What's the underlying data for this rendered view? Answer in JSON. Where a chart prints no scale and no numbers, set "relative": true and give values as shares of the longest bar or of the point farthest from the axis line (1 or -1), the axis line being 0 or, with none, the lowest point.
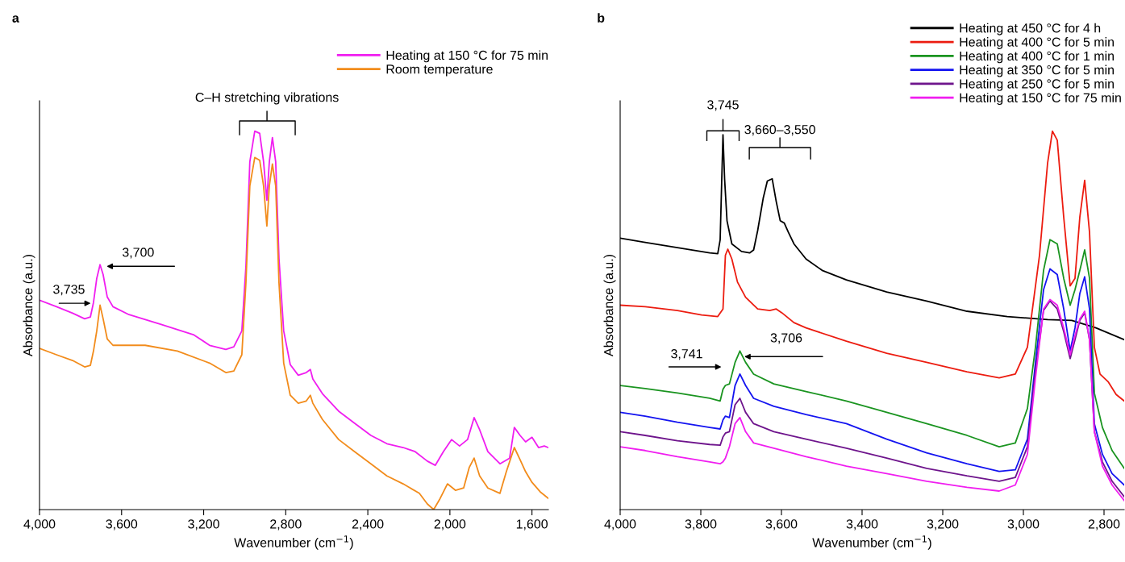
{
  "chart_data": [
    {
      "type": "line",
      "title": "a",
      "relative": true,
      "xlabel": "Wavenumber (cm$^{−1}$)",
      "ylabel": "Absorbance (a.u.)",
      "xlim": [
        4000,
        1520
      ],
      "xticks": [
        {
          "value": 4000,
          "label": "4,000"
        },
        {
          "value": 3600,
          "label": "3,600"
        },
        {
          "value": 3200,
          "label": "3,200"
        },
        {
          "value": 2800,
          "label": "2,800"
        },
        {
          "value": 2400,
          "label": "2,400"
        },
        {
          "value": 2000,
          "label": "2,000"
        },
        {
          "value": 1600,
          "label": "1,600"
        }
      ],
      "tick_labels": "x",
      "grid": false,
      "legend": "top right",
      "marker": "none",
      "line_style": "solid",
      "annotations": [
        "C–H stretching vibrations",
        {
          "text": "3,735",
          "x": 3735,
          "y": 0.545
        },
        {
          "text": "3,700",
          "x": 3700,
          "y": 0.647
        }
      ],
      "series": [
        {
          "name": "Heating at 150 °C for 75 min",
          "color": "#f01ef0",
          "x": [
            4000,
            3917,
            3839,
            3780,
            3752,
            3737,
            3721,
            3705,
            3690,
            3670,
            3642,
            3564,
            3407,
            3250,
            3171,
            3092,
            3053,
            3014,
            2994,
            2975,
            2951,
            2927,
            2908,
            2892,
            2880,
            2865,
            2849,
            2833,
            2810,
            2778,
            2739,
            2700,
            2680,
            2668,
            2621,
            2542,
            2464,
            2385,
            2307,
            2228,
            2169,
            2110,
            2071,
            2032,
            1992,
            1953,
            1914,
            1882,
            1855,
            1815,
            1756,
            1709,
            1686,
            1658,
            1631,
            1600,
            1568,
            1540,
            1521
          ],
          "values": [
            0.553,
            0.536,
            0.519,
            0.504,
            0.509,
            0.547,
            0.611,
            0.647,
            0.621,
            0.562,
            0.536,
            0.515,
            0.489,
            0.462,
            0.434,
            0.423,
            0.43,
            0.472,
            0.643,
            0.919,
            1,
            0.994,
            0.919,
            0.817,
            0.919,
            0.983,
            0.919,
            0.664,
            0.472,
            0.383,
            0.355,
            0.362,
            0.37,
            0.345,
            0.306,
            0.26,
            0.228,
            0.196,
            0.174,
            0.164,
            0.153,
            0.128,
            0.117,
            0.153,
            0.185,
            0.168,
            0.185,
            0.243,
            0.211,
            0.153,
            0.121,
            0.136,
            0.217,
            0.196,
            0.179,
            0.191,
            0.164,
            0.168,
            0.164
          ]
        },
        {
          "name": "Room temperature",
          "color": "#f28c1c",
          "x": [
            4000,
            3917,
            3839,
            3780,
            3752,
            3737,
            3721,
            3705,
            3690,
            3670,
            3642,
            3564,
            3485,
            3328,
            3171,
            3092,
            3053,
            3014,
            2994,
            2975,
            2951,
            2927,
            2908,
            2892,
            2880,
            2865,
            2849,
            2833,
            2810,
            2778,
            2739,
            2700,
            2680,
            2668,
            2621,
            2542,
            2464,
            2385,
            2307,
            2228,
            2149,
            2110,
            2079,
            2051,
            2012,
            1973,
            1933,
            1906,
            1882,
            1855,
            1815,
            1756,
            1725,
            1686,
            1658,
            1631,
            1600,
            1560,
            1521
          ],
          "values": [
            0.426,
            0.409,
            0.394,
            0.377,
            0.381,
            0.419,
            0.472,
            0.54,
            0.504,
            0.451,
            0.434,
            0.434,
            0.434,
            0.419,
            0.387,
            0.362,
            0.366,
            0.409,
            0.6,
            0.855,
            0.93,
            0.923,
            0.855,
            0.749,
            0.855,
            0.913,
            0.855,
            0.6,
            0.387,
            0.302,
            0.281,
            0.287,
            0.302,
            0.281,
            0.238,
            0.185,
            0.153,
            0.121,
            0.089,
            0.068,
            0.043,
            0.015,
            0,
            0.026,
            0.068,
            0.051,
            0.057,
            0.111,
            0.136,
            0.089,
            0.057,
            0.043,
            0.1,
            0.164,
            0.132,
            0.1,
            0.072,
            0.047,
            0.03
          ]
        }
      ]
    },
    {
      "type": "line",
      "title": "b",
      "relative": true,
      "xlabel": "Wavenumber (cm$^{−1}$)",
      "ylabel": "Absorbance (a.u.)",
      "xlim": [
        4000,
        2750
      ],
      "xticks": [
        {
          "value": 4000,
          "label": "4,000"
        },
        {
          "value": 3800,
          "label": "3,800"
        },
        {
          "value": 3600,
          "label": "3,600"
        },
        {
          "value": 3400,
          "label": "3,400"
        },
        {
          "value": 3200,
          "label": "3,200"
        },
        {
          "value": 3000,
          "label": "3,000"
        },
        {
          "value": 2800,
          "label": "2,800"
        }
      ],
      "tick_labels": "x",
      "grid": false,
      "legend": "top right",
      "marker": "none",
      "line_style": "solid",
      "annotations": [
        {
          "text": "3,745",
          "x": 3745,
          "y": 0.99
        },
        "3,660–3,550",
        {
          "text": "3,741",
          "x": 3741,
          "y": 0.328
        },
        {
          "text": "3,706",
          "x": 3706,
          "y": 0.419
        }
      ],
      "series": [
        {
          "name": "Heating at 450 °C for 4 h",
          "color": "#000000",
          "x": [
            4000,
            3938,
            3858,
            3778,
            3758,
            3752,
            3748,
            3745,
            3741,
            3735,
            3723,
            3699,
            3679,
            3669,
            3659,
            3645,
            3635,
            3623,
            3613,
            3603,
            3593,
            3583,
            3569,
            3539,
            3499,
            3439,
            3339,
            3240,
            3140,
            3040,
            2940,
            2880,
            2820,
            2750
          ],
          "values": [
            0.717,
            0.706,
            0.692,
            0.678,
            0.676,
            0.713,
            0.874,
            0.99,
            0.874,
            0.763,
            0.702,
            0.682,
            0.678,
            0.686,
            0.737,
            0.824,
            0.868,
            0.874,
            0.814,
            0.763,
            0.757,
            0.733,
            0.702,
            0.662,
            0.632,
            0.607,
            0.575,
            0.551,
            0.524,
            0.51,
            0.502,
            0.5,
            0.48,
            0.449
          ]
        },
        {
          "name": "Heating at 400 °C for 5 min",
          "color": "#ec1c10",
          "x": [
            4000,
            3938,
            3858,
            3798,
            3758,
            3745,
            3739,
            3733,
            3723,
            3709,
            3689,
            3659,
            3629,
            3613,
            3599,
            3569,
            3539,
            3439,
            3339,
            3240,
            3140,
            3060,
            3020,
            2990,
            2960,
            2940,
            2928,
            2916,
            2900,
            2884,
            2872,
            2860,
            2848,
            2836,
            2824,
            2810,
            2790,
            2770,
            2750
          ],
          "values": [
            0.54,
            0.536,
            0.526,
            0.514,
            0.51,
            0.53,
            0.672,
            0.688,
            0.662,
            0.601,
            0.561,
            0.53,
            0.526,
            0.53,
            0.52,
            0.494,
            0.48,
            0.445,
            0.413,
            0.389,
            0.364,
            0.348,
            0.358,
            0.429,
            0.672,
            0.915,
            1,
            0.976,
            0.773,
            0.591,
            0.611,
            0.773,
            0.87,
            0.733,
            0.429,
            0.358,
            0.338,
            0.304,
            0.287
          ]
        },
        {
          "name": "Heating at 400 °C for 1 min",
          "color": "#1a9420",
          "x": [
            4000,
            3938,
            3858,
            3778,
            3752,
            3745,
            3739,
            3729,
            3715,
            3703,
            3689,
            3669,
            3619,
            3539,
            3439,
            3339,
            3240,
            3140,
            3060,
            3020,
            2990,
            2970,
            2950,
            2934,
            2916,
            2900,
            2884,
            2872,
            2860,
            2848,
            2836,
            2824,
            2804,
            2780,
            2750
          ],
          "values": [
            0.328,
            0.32,
            0.308,
            0.294,
            0.287,
            0.318,
            0.328,
            0.332,
            0.389,
            0.419,
            0.389,
            0.358,
            0.332,
            0.312,
            0.287,
            0.257,
            0.227,
            0.196,
            0.166,
            0.176,
            0.267,
            0.429,
            0.632,
            0.713,
            0.702,
            0.611,
            0.54,
            0.581,
            0.632,
            0.686,
            0.611,
            0.308,
            0.217,
            0.156,
            0.109
          ]
        },
        {
          "name": "Heating at 350 °C for 5 min",
          "color": "#1414f0",
          "x": [
            4000,
            3938,
            3858,
            3778,
            3752,
            3745,
            3739,
            3729,
            3715,
            3703,
            3689,
            3669,
            3619,
            3539,
            3439,
            3339,
            3240,
            3140,
            3060,
            3020,
            2990,
            2970,
            2950,
            2934,
            2916,
            2900,
            2884,
            2872,
            2860,
            2848,
            2836,
            2824,
            2804,
            2780,
            2750
          ],
          "values": [
            0.257,
            0.247,
            0.231,
            0.217,
            0.213,
            0.237,
            0.247,
            0.243,
            0.328,
            0.358,
            0.328,
            0.294,
            0.273,
            0.251,
            0.227,
            0.186,
            0.15,
            0.121,
            0.101,
            0.105,
            0.186,
            0.389,
            0.581,
            0.636,
            0.621,
            0.53,
            0.419,
            0.48,
            0.571,
            0.615,
            0.53,
            0.227,
            0.146,
            0.095,
            0.065
          ]
        },
        {
          "name": "Heating at 250 °C for 5 min",
          "color": "#6e148c",
          "x": [
            4000,
            3938,
            3858,
            3778,
            3752,
            3745,
            3739,
            3729,
            3715,
            3703,
            3689,
            3669,
            3619,
            3539,
            3439,
            3339,
            3240,
            3140,
            3060,
            3020,
            2990,
            2970,
            2950,
            2934,
            2916,
            2900,
            2884,
            2872,
            2860,
            2848,
            2836,
            2824,
            2804,
            2780,
            2750
          ],
          "values": [
            0.206,
            0.196,
            0.182,
            0.172,
            0.17,
            0.192,
            0.202,
            0.206,
            0.277,
            0.294,
            0.257,
            0.227,
            0.206,
            0.186,
            0.162,
            0.136,
            0.109,
            0.089,
            0.075,
            0.085,
            0.166,
            0.368,
            0.526,
            0.551,
            0.53,
            0.47,
            0.399,
            0.449,
            0.5,
            0.52,
            0.449,
            0.206,
            0.126,
            0.075,
            0.034
          ]
        },
        {
          "name": "Heating at 150 °C for 75 min",
          "color": "#f01ef0",
          "x": [
            4000,
            3938,
            3858,
            3778,
            3752,
            3745,
            3739,
            3729,
            3715,
            3703,
            3689,
            3669,
            3619,
            3539,
            3439,
            3339,
            3240,
            3140,
            3060,
            3020,
            2990,
            2970,
            2950,
            2934,
            2916,
            2900,
            2884,
            2872,
            2860,
            2848,
            2836,
            2824,
            2804,
            2780,
            2750
          ],
          "values": [
            0.166,
            0.156,
            0.14,
            0.126,
            0.121,
            0.126,
            0.136,
            0.166,
            0.227,
            0.243,
            0.206,
            0.176,
            0.162,
            0.14,
            0.115,
            0.095,
            0.075,
            0.059,
            0.049,
            0.065,
            0.146,
            0.348,
            0.53,
            0.555,
            0.54,
            0.48,
            0.409,
            0.46,
            0.504,
            0.524,
            0.449,
            0.206,
            0.115,
            0.065,
            0.024
          ]
        }
      ]
    }
  ]
}
